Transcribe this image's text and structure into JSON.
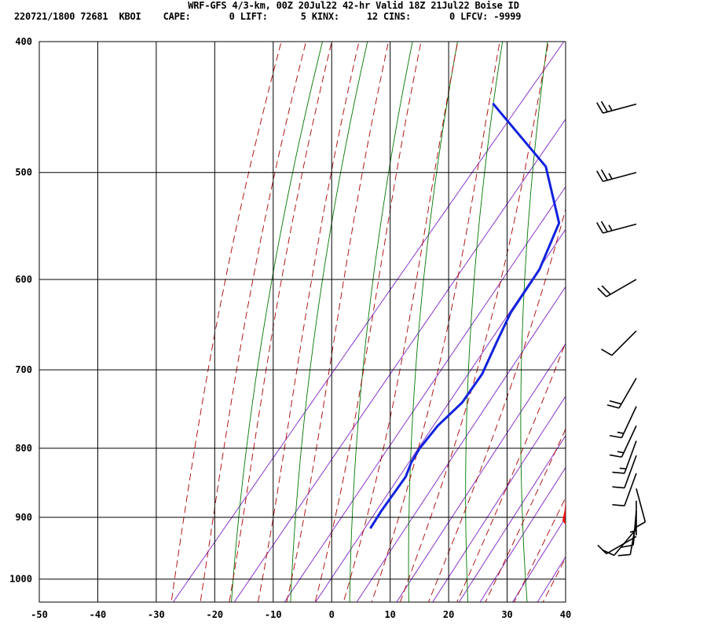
{
  "chart_data": {
    "type": "skew-t",
    "title": "WRF-GFS 4/3-km, 00Z 20Jul22 42-hr Valid 18Z 21Jul22 Boise ID",
    "station_line": {
      "id": "220721/1800 72681  KBOI",
      "indices": [
        {
          "label": "CAPE:",
          "value": "0"
        },
        {
          "label": "LIFT:",
          "value": "5"
        },
        {
          "label": "KINX:",
          "value": "12"
        },
        {
          "label": "CINS:",
          "value": "0"
        },
        {
          "label": "LFCV:",
          "value": "-9999"
        }
      ]
    },
    "x_ticks": [
      -50,
      -40,
      -30,
      -20,
      -10,
      0,
      10,
      20,
      30,
      40
    ],
    "p_ticks": [
      400,
      500,
      600,
      700,
      800,
      900,
      1000
    ],
    "xlim": [
      -50,
      40
    ],
    "plim": [
      400,
      1040
    ],
    "temperature": [
      {
        "p": 916,
        "t": 32.0
      },
      {
        "p": 913,
        "t": 30.0
      },
      {
        "p": 905,
        "t": 28.5
      },
      {
        "p": 890,
        "t": 27.5
      },
      {
        "p": 865,
        "t": 25.5
      },
      {
        "p": 838,
        "t": 23.5
      },
      {
        "p": 810,
        "t": 22.5
      },
      {
        "p": 787,
        "t": 21.5
      },
      {
        "p": 762,
        "t": 19.0
      },
      {
        "p": 727,
        "t": 15.0
      },
      {
        "p": 667,
        "t": 8.0
      },
      {
        "p": 605,
        "t": 0.0
      },
      {
        "p": 546,
        "t": -6.0
      },
      {
        "p": 500,
        "t": -10.0
      },
      {
        "p": 445,
        "t": -14.5
      }
    ],
    "dewpoint": [
      {
        "p": 916,
        "t": -3.5
      },
      {
        "p": 890,
        "t": -4.0
      },
      {
        "p": 840,
        "t": -4.5
      },
      {
        "p": 820,
        "t": -5.5
      },
      {
        "p": 800,
        "t": -6.0
      },
      {
        "p": 770,
        "t": -6.0
      },
      {
        "p": 740,
        "t": -5.0
      },
      {
        "p": 705,
        "t": -5.5
      },
      {
        "p": 665,
        "t": -7.5
      },
      {
        "p": 635,
        "t": -9.0
      },
      {
        "p": 590,
        "t": -10.0
      },
      {
        "p": 545,
        "t": -13.0
      },
      {
        "p": 495,
        "t": -23.0
      },
      {
        "p": 445,
        "t": -40.5
      }
    ],
    "wind_barbs": [
      {
        "p": 445,
        "dir": 255,
        "kt": 25
      },
      {
        "p": 500,
        "dir": 255,
        "kt": 25
      },
      {
        "p": 546,
        "dir": 255,
        "kt": 25
      },
      {
        "p": 600,
        "dir": 240,
        "kt": 20
      },
      {
        "p": 655,
        "dir": 225,
        "kt": 10
      },
      {
        "p": 710,
        "dir": 210,
        "kt": 20
      },
      {
        "p": 745,
        "dir": 205,
        "kt": 15
      },
      {
        "p": 770,
        "dir": 205,
        "kt": 15
      },
      {
        "p": 790,
        "dir": 200,
        "kt": 15
      },
      {
        "p": 810,
        "dir": 200,
        "kt": 10
      },
      {
        "p": 835,
        "dir": 200,
        "kt": 10
      },
      {
        "p": 857,
        "dir": 165,
        "kt": 10
      },
      {
        "p": 875,
        "dir": 180,
        "kt": 5
      },
      {
        "p": 890,
        "dir": 185,
        "kt": 10
      },
      {
        "p": 905,
        "dir": 190,
        "kt": 10
      },
      {
        "p": 918,
        "dir": 220,
        "kt": 10
      },
      {
        "p": 930,
        "dir": 240,
        "kt": 10
      }
    ],
    "colors": {
      "temperature": "#ee1111",
      "dewpoint": "#1122dd",
      "isotherm": "#000000",
      "isobar": "#000000",
      "dry_adiabat": "#007700",
      "moist_adiabat": "#aa0000",
      "mixing_ratio": "#8833cc"
    }
  }
}
